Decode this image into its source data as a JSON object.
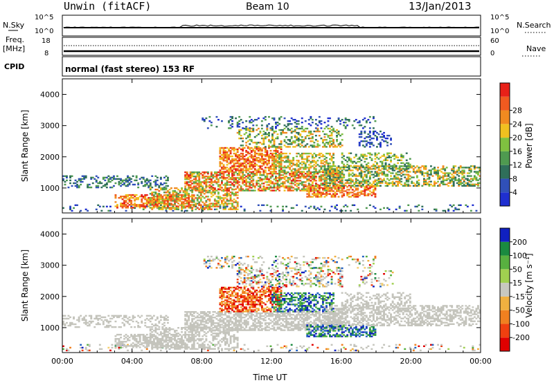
{
  "header": {
    "station": "Unwin (fitACF)",
    "beam": "Beam 10",
    "date": "13/Jan/2013"
  },
  "summary_panels": {
    "noise": {
      "left_label": "N.Sky",
      "right_label": "N.Search",
      "tick_top": "10^5",
      "tick_bottom": "10^0",
      "right_tick_top": "10^5",
      "right_tick_bottom": "10^0"
    },
    "frequency": {
      "left_label_line1": "Freq.",
      "left_label_line2": "[MHz]",
      "tick_top": "18",
      "tick_bottom": "8",
      "right_label": "Nave",
      "right_tick_top": "60",
      "right_tick_bottom": "0"
    },
    "cpid": {
      "left_label": "CPID",
      "text": "normal (fast stereo) 153 RF"
    }
  },
  "colors": {
    "power_scale": [
      "#1f2fd0",
      "#3050b8",
      "#2f6f5a",
      "#4f9a50",
      "#7fc040",
      "#f0c020",
      "#f08a20",
      "#f05a20",
      "#e82018"
    ],
    "velocity_scale": [
      "#e00000",
      "#f04010",
      "#f08020",
      "#f0b040",
      "#f5d070",
      "#c8c8c0",
      "#a0d050",
      "#58b040",
      "#1a8a40",
      "#2060c0",
      "#1020c0"
    ],
    "ground_scatter": "#c4c4bc"
  },
  "chart_data": [
    {
      "type": "heatmap",
      "name": "power",
      "xlabel": "",
      "ylabel": "Slant Range [km]",
      "colorbar_label": "Power [dB]",
      "colorbar_ticks": [
        "4",
        "8",
        "12",
        "16",
        "20",
        "24",
        "28"
      ],
      "x_ticks": [
        "00:00",
        "04:00",
        "08:00",
        "12:00",
        "16:00",
        "20:00",
        "00:00"
      ],
      "y_ticks": [
        "1000",
        "2000",
        "3000",
        "4000"
      ],
      "xlim": [
        0,
        24
      ],
      "ylim": [
        200,
        4500
      ],
      "color_range": [
        0,
        32
      ]
    },
    {
      "type": "heatmap",
      "name": "velocity",
      "xlabel": "Time UT",
      "ylabel": "Slant Range [km]",
      "colorbar_label": "Velocity [m s⁻¹]",
      "colorbar_ticks": [
        "-200",
        "-100",
        "-50",
        "-15",
        "15",
        "50",
        "100",
        "200"
      ],
      "x_ticks": [
        "00:00",
        "04:00",
        "08:00",
        "12:00",
        "16:00",
        "20:00",
        "00:00"
      ],
      "y_ticks": [
        "1000",
        "2000",
        "3000",
        "4000"
      ],
      "xlim": [
        0,
        24
      ],
      "ylim": [
        200,
        4500
      ],
      "color_range": [
        -250,
        250
      ]
    }
  ]
}
